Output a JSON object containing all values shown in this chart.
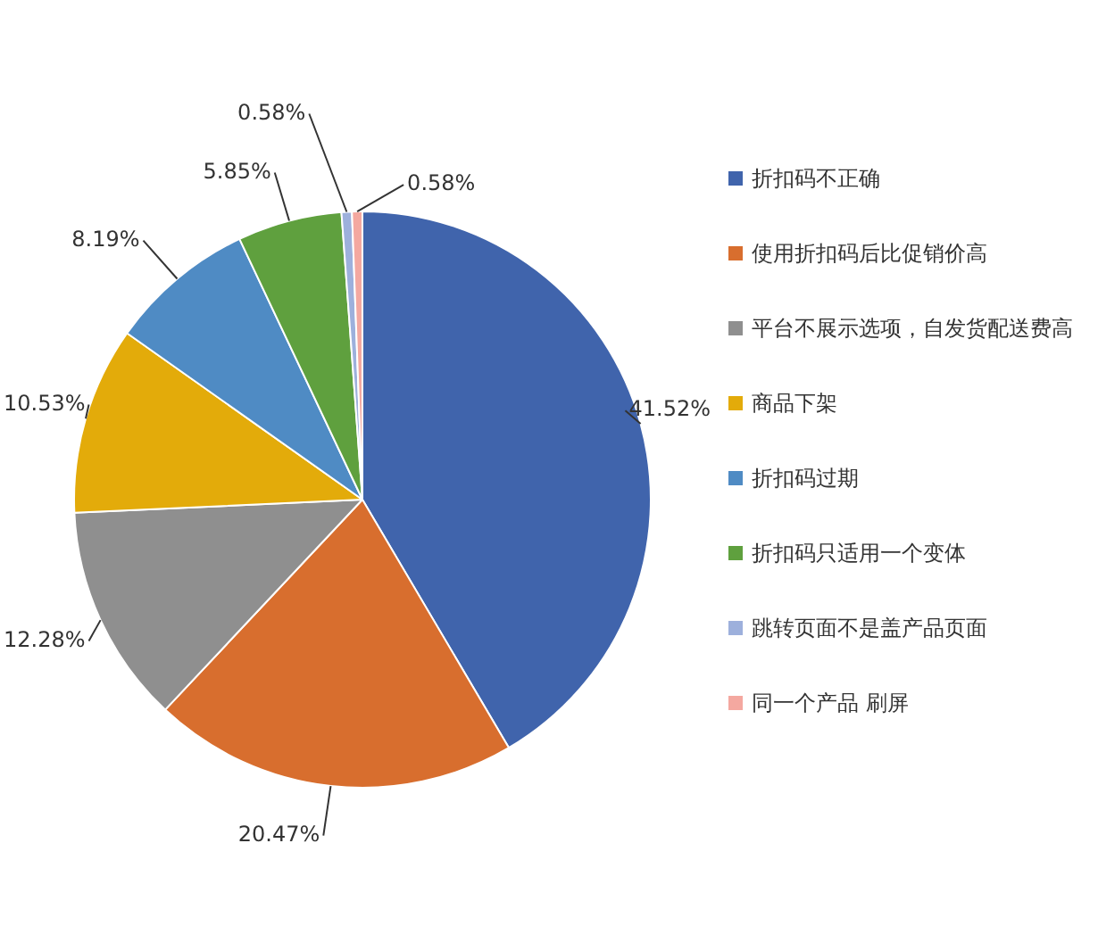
{
  "chart_data": {
    "type": "pie",
    "categories": [
      "折扣码不正确",
      "使用折扣码后比促销价高",
      "平台不展示选项，自发货配送费高",
      "商品下架",
      "折扣码过期",
      "折扣码只适用一个变体",
      "跳转页面不是盖产品页面",
      "同一个产品 刷屏"
    ],
    "values": [
      41.52,
      20.47,
      12.28,
      10.53,
      8.19,
      5.85,
      0.58,
      0.58
    ],
    "value_labels": [
      "41.52%",
      "20.47%",
      "12.28%",
      "10.53%",
      "8.19%",
      "5.85%",
      "0.58%",
      "0.58%"
    ],
    "colors": [
      "#4064ac",
      "#d86e2e",
      "#8f8f8f",
      "#e3ab0a",
      "#4f8bc4",
      "#5fa03e",
      "#9db0dc",
      "#f4a8a0"
    ],
    "legend": "right"
  }
}
